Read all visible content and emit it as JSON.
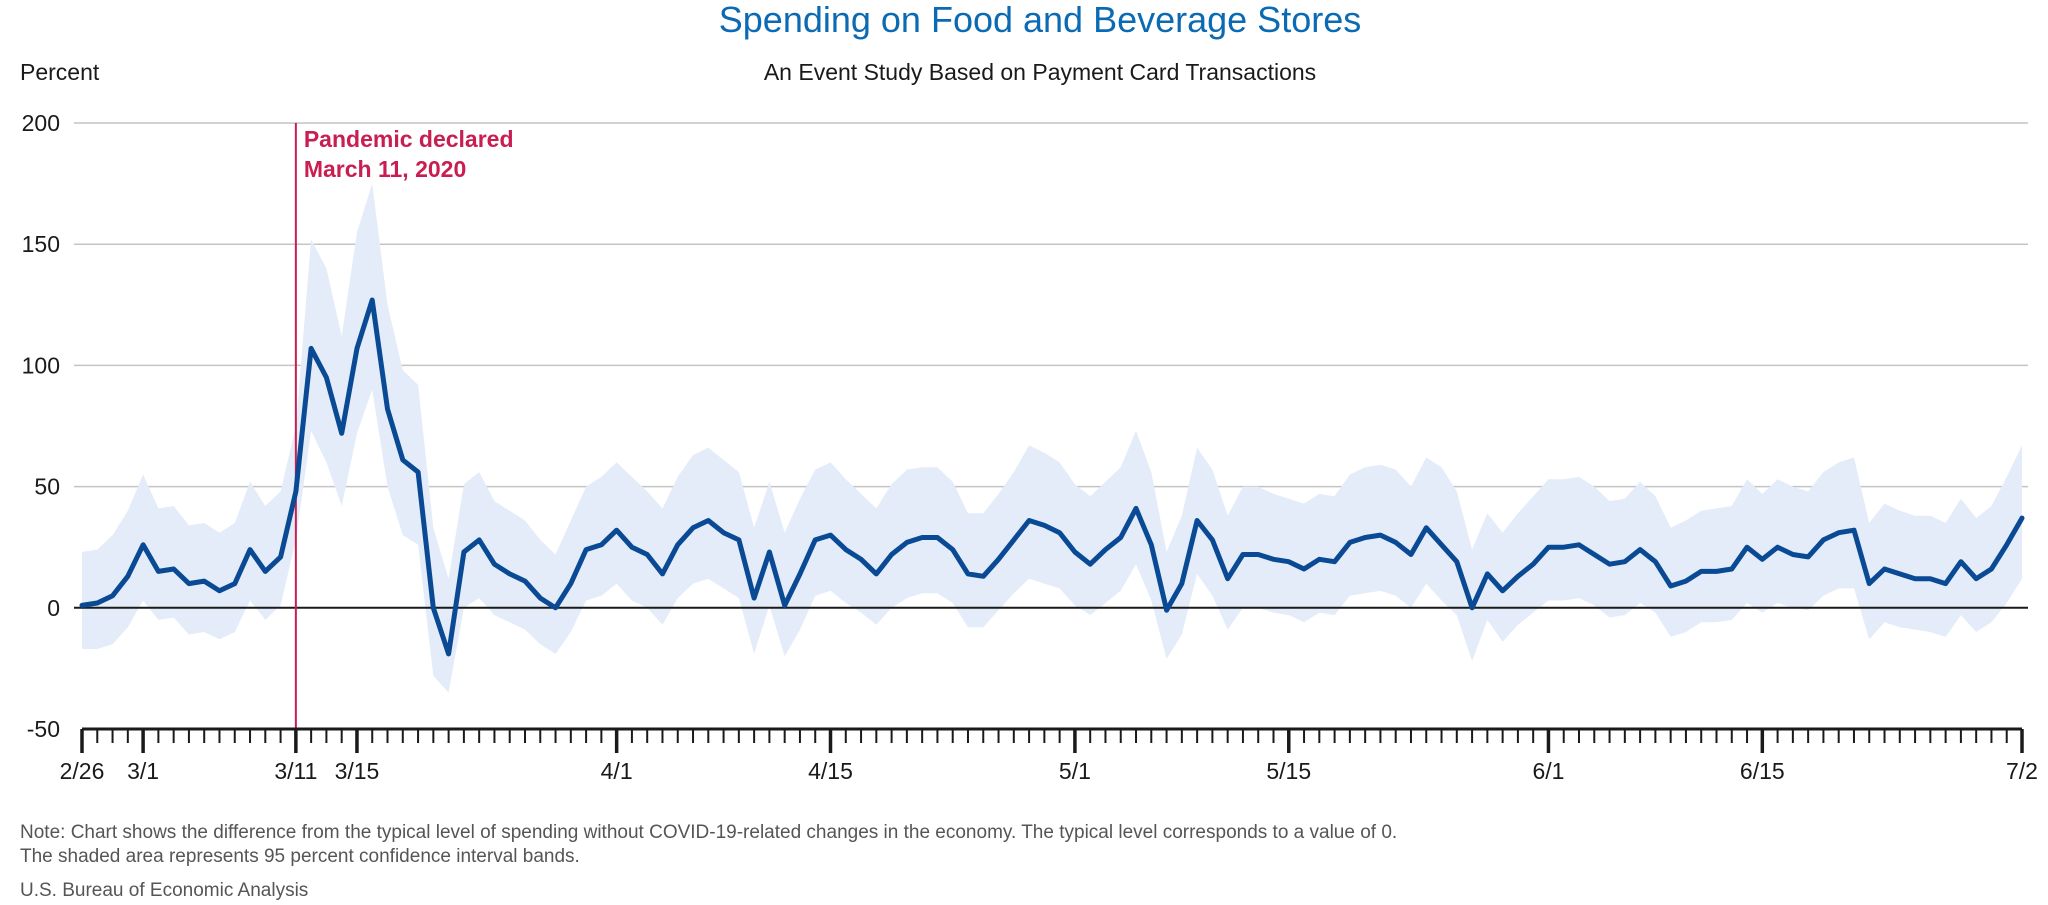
{
  "chart_data": {
    "type": "line",
    "title": "Spending on Food and Beverage Stores",
    "subtitle": "An Event Study Based on Payment Card Transactions",
    "ylabel": "Percent",
    "ylim": [
      -50,
      200
    ],
    "yticks": [
      -50,
      0,
      50,
      100,
      150,
      200
    ],
    "grid": true,
    "start_date": "2020-02-26",
    "x_tick_labels": [
      {
        "day": 0,
        "label": "2/26"
      },
      {
        "day": 4,
        "label": "3/1"
      },
      {
        "day": 14,
        "label": "3/11"
      },
      {
        "day": 18,
        "label": "3/15"
      },
      {
        "day": 35,
        "label": "4/1"
      },
      {
        "day": 49,
        "label": "4/15"
      },
      {
        "day": 65,
        "label": "5/1"
      },
      {
        "day": 79,
        "label": "5/15"
      },
      {
        "day": 96,
        "label": "6/1"
      },
      {
        "day": 110,
        "label": "6/15"
      },
      {
        "day": 127,
        "label": "7/2"
      }
    ],
    "annotation": {
      "day": 14,
      "line1": "Pandemic declared",
      "line2": "March 11, 2020"
    },
    "series": [
      {
        "values": [
          1,
          2,
          5,
          13,
          26,
          15,
          16,
          10,
          11,
          7,
          10,
          24,
          15,
          21,
          48,
          107,
          95,
          72,
          107,
          127,
          82,
          61,
          56,
          0,
          -19,
          23,
          28,
          18,
          14,
          11,
          4,
          0,
          10,
          24,
          26,
          32,
          25,
          22,
          14,
          26,
          33,
          36,
          31,
          28,
          4,
          23,
          1,
          14,
          28,
          30,
          24,
          20,
          14,
          22,
          27,
          29,
          29,
          24,
          14,
          13,
          20,
          28,
          36,
          34,
          31,
          23,
          18,
          24,
          29,
          41,
          26,
          -1,
          10,
          36,
          28,
          12,
          22,
          22,
          20,
          19,
          16,
          20,
          19,
          27,
          29,
          30,
          27,
          22,
          33,
          26,
          19,
          0,
          14,
          7,
          13,
          18,
          25,
          25,
          26,
          22,
          18,
          19,
          24,
          19,
          9,
          11,
          15,
          15,
          16,
          25,
          20,
          25,
          22,
          21,
          28,
          31,
          32,
          10,
          16,
          14,
          12,
          12,
          10,
          19,
          12,
          16,
          26,
          37
        ],
        "upper": [
          23,
          24,
          30,
          40,
          55,
          41,
          42,
          34,
          35,
          31,
          35,
          52,
          42,
          48,
          75,
          152,
          140,
          112,
          155,
          175,
          125,
          98,
          92,
          33,
          12,
          51,
          56,
          44,
          40,
          36,
          28,
          22,
          36,
          50,
          54,
          60,
          54,
          48,
          41,
          54,
          63,
          66,
          61,
          56,
          33,
          52,
          31,
          45,
          57,
          60,
          53,
          47,
          41,
          51,
          57,
          58,
          58,
          52,
          39,
          39,
          47,
          56,
          67,
          64,
          60,
          51,
          46,
          52,
          58,
          73,
          56,
          23,
          38,
          66,
          57,
          38,
          50,
          50,
          47,
          45,
          43,
          47,
          46,
          55,
          58,
          59,
          57,
          50,
          62,
          58,
          48,
          24,
          39,
          31,
          39,
          46,
          53,
          53,
          54,
          50,
          44,
          45,
          52,
          46,
          33,
          36,
          40,
          41,
          42,
          53,
          47,
          53,
          50,
          48,
          56,
          60,
          62,
          35,
          43,
          40,
          38,
          38,
          35,
          45,
          37,
          42,
          54,
          67
        ],
        "lower": [
          -17,
          -17,
          -15,
          -8,
          3,
          -5,
          -4,
          -11,
          -10,
          -13,
          -10,
          3,
          -5,
          1,
          28,
          73,
          60,
          42,
          72,
          90,
          50,
          30,
          26,
          -28,
          -35,
          0,
          4,
          -3,
          -6,
          -9,
          -15,
          -19,
          -10,
          3,
          5,
          10,
          3,
          0,
          -7,
          4,
          10,
          12,
          8,
          4,
          -19,
          1,
          -20,
          -9,
          5,
          7,
          2,
          -2,
          -7,
          0,
          4,
          6,
          6,
          2,
          -8,
          -8,
          -1,
          6,
          12,
          10,
          8,
          1,
          -3,
          2,
          7,
          18,
          3,
          -21,
          -11,
          14,
          5,
          -9,
          0,
          0,
          -2,
          -3,
          -6,
          -2,
          -3,
          5,
          6,
          7,
          5,
          0,
          10,
          3,
          -3,
          -22,
          -5,
          -14,
          -7,
          -2,
          3,
          3,
          4,
          1,
          -4,
          -3,
          2,
          -2,
          -12,
          -10,
          -6,
          -6,
          -5,
          2,
          -2,
          2,
          0,
          -1,
          5,
          8,
          8,
          -13,
          -6,
          -8,
          -9,
          -10,
          -12,
          -3,
          -10,
          -6,
          2,
          12
        ]
      }
    ],
    "colors": {
      "title": "#0a6ab3",
      "line": "#0a4a94",
      "band": "#e3ecf8",
      "annotation": "#c81e51",
      "grid": "#c4c4c4",
      "zero_line": "#1a1a1a",
      "text": "#1a1a1a",
      "footer": "#555555"
    }
  },
  "footer": {
    "note_line1": "Note: Chart shows the difference from the typical level of spending without COVID-19-related changes in the economy. The typical level corresponds to a value of 0.",
    "note_line2": "The shaded area represents 95 percent confidence interval bands.",
    "source": "U.S. Bureau of Economic Analysis"
  }
}
